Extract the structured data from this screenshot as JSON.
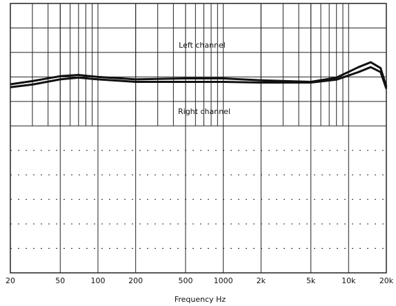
{
  "chart_data": {
    "type": "line",
    "x_label": "Frequency Hz",
    "x": [
      20,
      30,
      50,
      70,
      100,
      200,
      500,
      1000,
      2000,
      5000,
      8000,
      12000,
      15000,
      18000,
      20000
    ],
    "series": [
      {
        "name": "Left channel",
        "color": "#111111",
        "values": [
          7.7,
          7.83,
          8.03,
          8.08,
          8.0,
          7.9,
          7.94,
          7.94,
          7.86,
          7.8,
          7.97,
          8.4,
          8.6,
          8.36,
          7.6
        ]
      },
      {
        "name": "Right channel",
        "color": "#111111",
        "values": [
          7.58,
          7.69,
          7.9,
          7.97,
          7.9,
          7.8,
          7.8,
          7.8,
          7.77,
          7.77,
          7.89,
          8.2,
          8.4,
          8.2,
          7.52
        ]
      }
    ],
    "xscale": "log",
    "xlim": [
      20,
      20000
    ],
    "xticks": [
      20,
      50,
      100,
      200,
      500,
      1000,
      {
        "value": 2000,
        "label": "2k"
      },
      {
        "value": 5000,
        "label": "5k"
      },
      {
        "value": 10000,
        "label": "10k"
      },
      {
        "value": 20000,
        "label": "20k"
      }
    ],
    "ylim": [
      0,
      11
    ]
  }
}
